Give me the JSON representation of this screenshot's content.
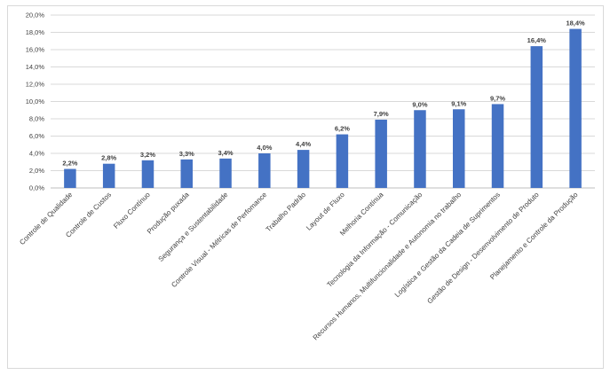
{
  "chart_data": {
    "type": "bar",
    "title": "",
    "xlabel": "",
    "ylabel": "",
    "ylim": [
      0,
      20
    ],
    "y_ticks": [
      "0,0%",
      "2,0%",
      "4,0%",
      "6,0%",
      "8,0%",
      "10,0%",
      "12,0%",
      "14,0%",
      "16,0%",
      "18,0%",
      "20,0%"
    ],
    "grid": true,
    "legend": "none",
    "bar_color": "#4472c4",
    "categories": [
      "Controle de Qualidade",
      "Controle de Custos",
      "Fluxo Contínuo",
      "Produção puxada",
      "Segurança e Sustentabilidade",
      "Controle Visual - Métricas de Perfomance",
      "Trabalho Padrão",
      "Layout de Fluxo",
      "Melhoria Contínua",
      "Tecnologia da Informação - Comunicação",
      "Recursos Humanos, Multifuncionalidade e Autonomia no trabalho",
      "Logística e Gestão da Cadeia de Suprimentos",
      "Gestão de Design - Desenvolvimento de Produto",
      "Planejamento e Controle da Produção"
    ],
    "values": [
      2.2,
      2.8,
      3.2,
      3.3,
      3.4,
      4.0,
      4.4,
      6.2,
      7.9,
      9.0,
      9.1,
      9.7,
      16.4,
      18.4
    ],
    "data_labels": [
      "2,2%",
      "2,8%",
      "3,2%",
      "3,3%",
      "3,4%",
      "4,0%",
      "4,4%",
      "6,2%",
      "7,9%",
      "9,0%",
      "9,1%",
      "9,7%",
      "16,4%",
      "18,4%"
    ]
  }
}
